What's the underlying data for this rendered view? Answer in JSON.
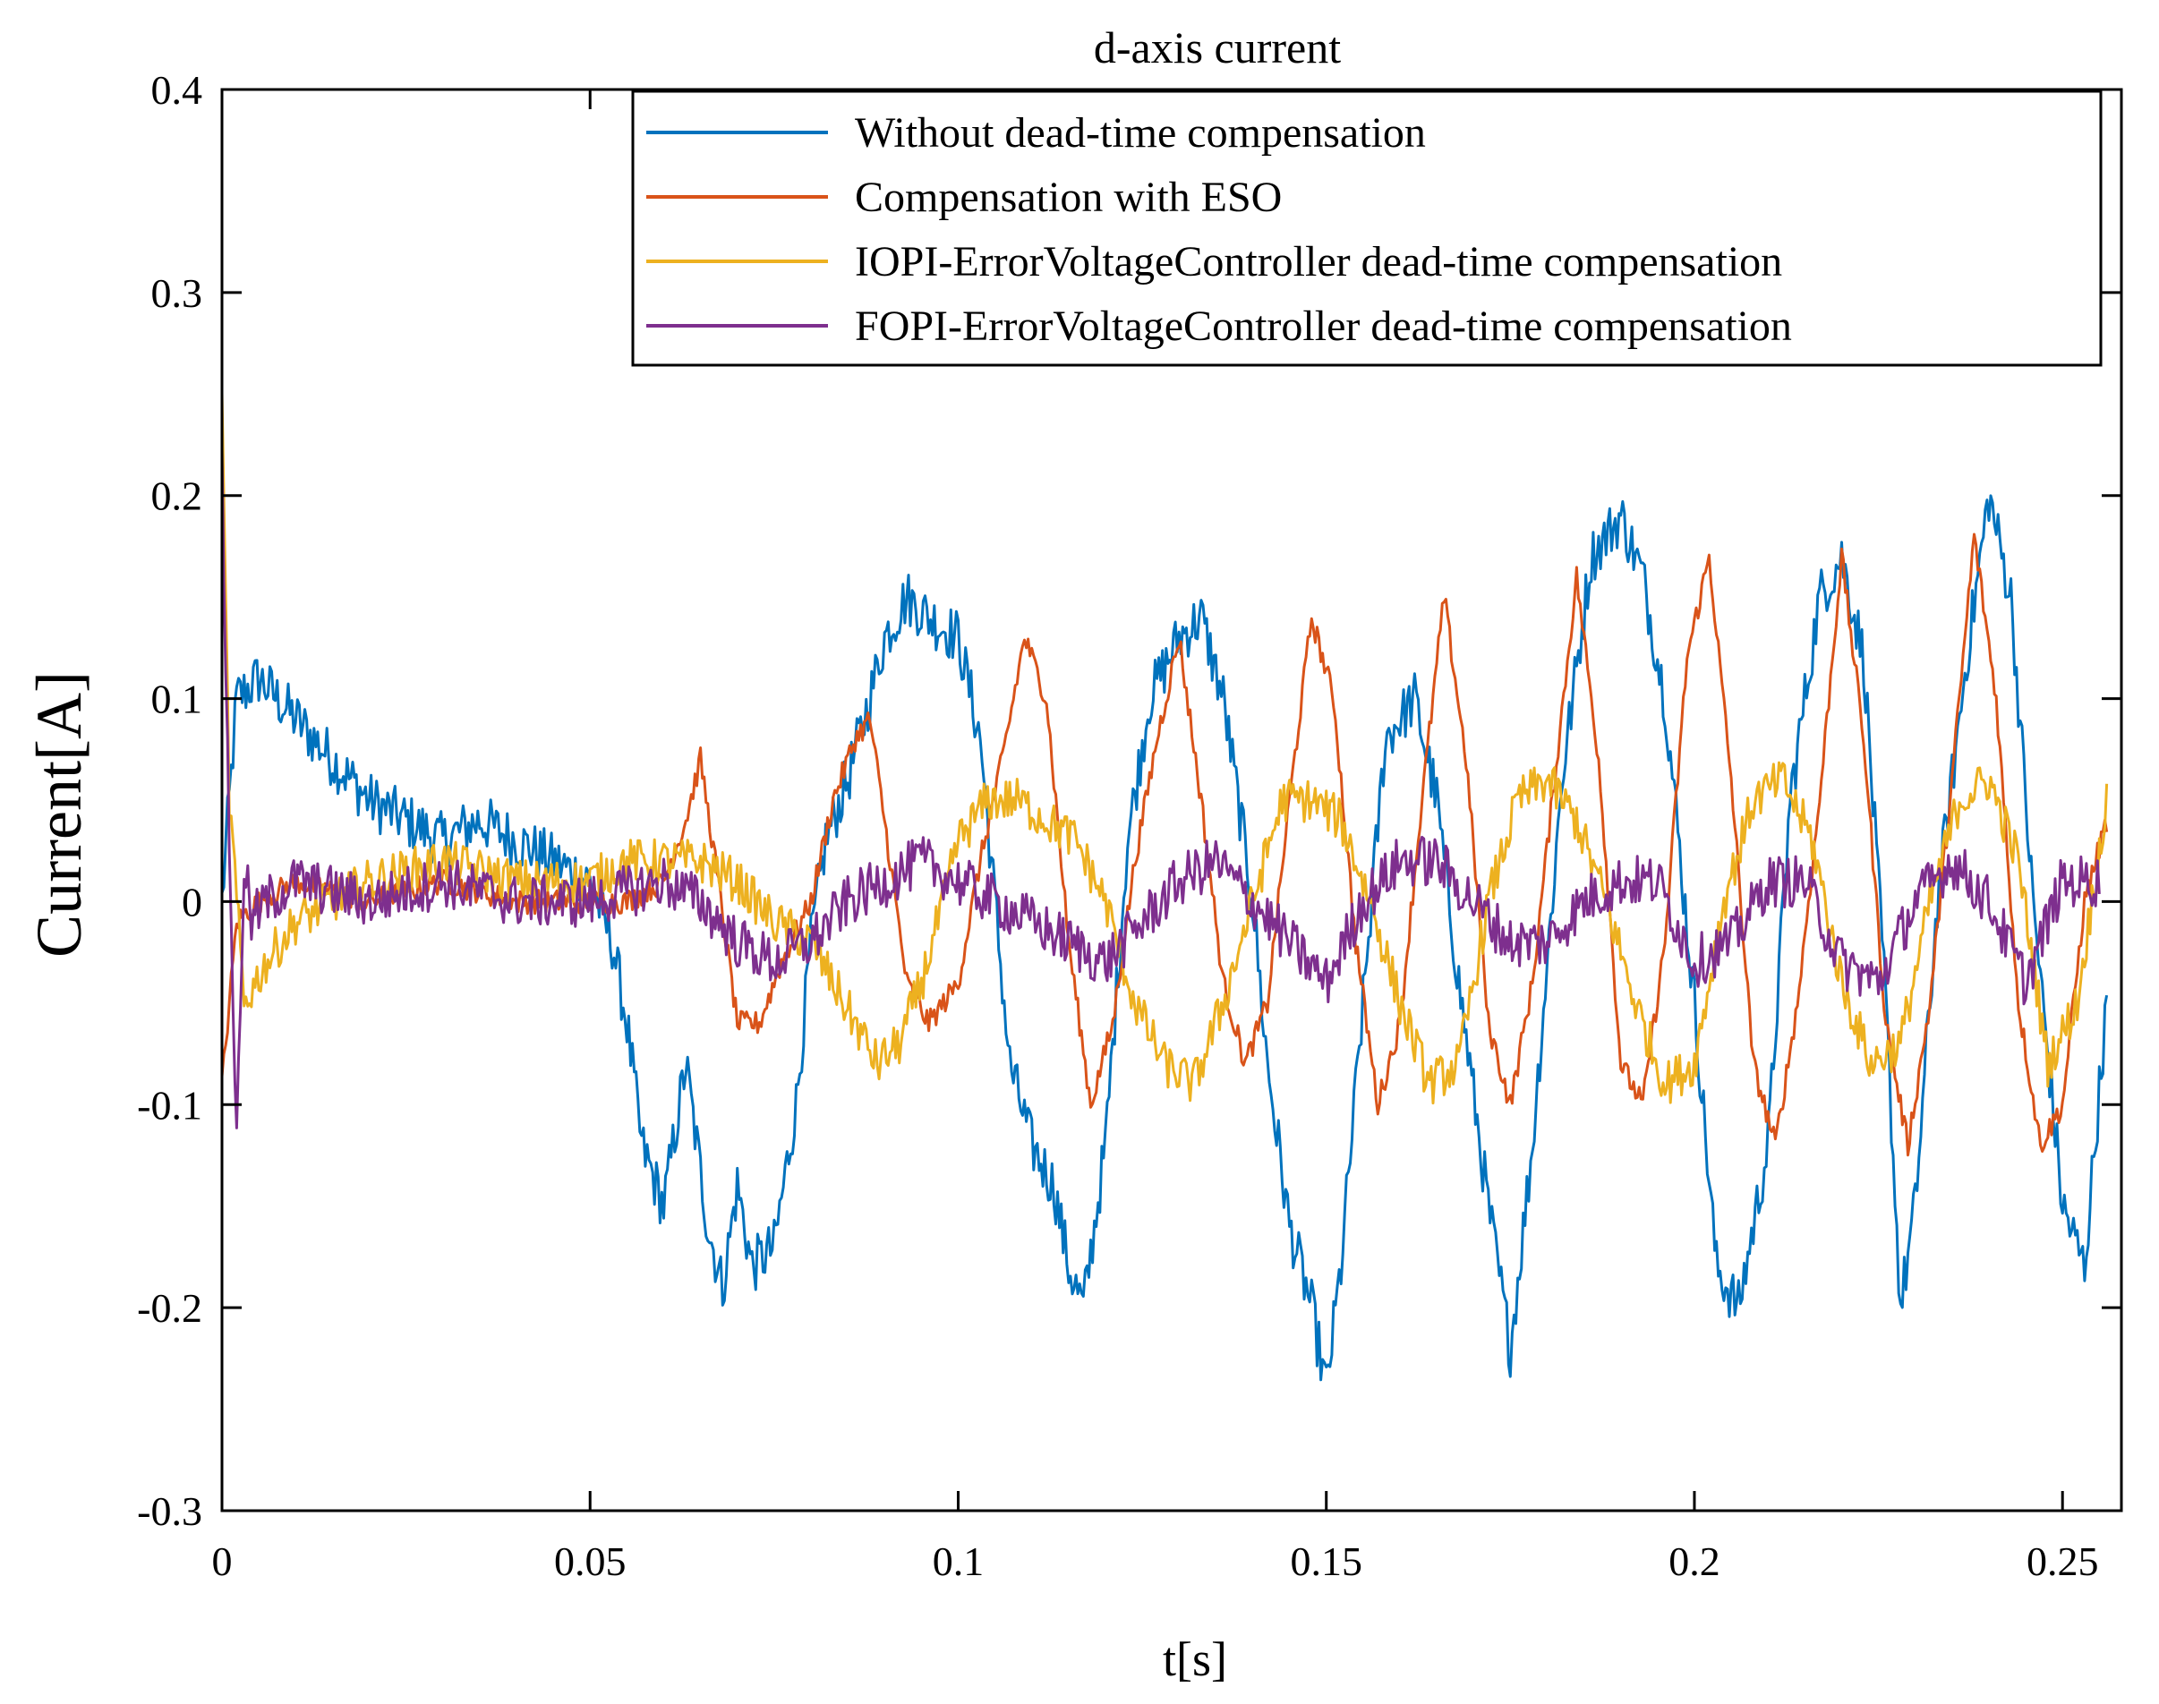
{
  "chart_data": {
    "type": "line",
    "title": "d-axis current",
    "xlabel": "t[s]",
    "ylabel": "Current[A]",
    "xlim": [
      0,
      0.258
    ],
    "ylim": [
      -0.3,
      0.4
    ],
    "xticks": [
      0,
      0.05,
      0.1,
      0.15,
      0.2,
      0.25
    ],
    "xtick_labels": [
      "0",
      "0.05",
      "0.1",
      "0.15",
      "0.2",
      "0.25"
    ],
    "yticks": [
      -0.3,
      -0.2,
      -0.1,
      0,
      0.1,
      0.2,
      0.3,
      0.4
    ],
    "ytick_labels": [
      "-0.3",
      "-0.2",
      "-0.1",
      "0",
      "0.1",
      "0.2",
      "0.3",
      "0.4"
    ],
    "grid": false,
    "legend_position": "top-right",
    "series": [
      {
        "name": "Without dead-time compensation",
        "color": "#0072BD",
        "x": [
          0,
          0.002,
          0.005,
          0.01,
          0.015,
          0.02,
          0.025,
          0.03,
          0.035,
          0.04,
          0.045,
          0.05,
          0.053,
          0.055,
          0.057,
          0.06,
          0.063,
          0.066,
          0.068,
          0.07,
          0.072,
          0.075,
          0.078,
          0.08,
          0.082,
          0.085,
          0.088,
          0.09,
          0.093,
          0.096,
          0.1,
          0.103,
          0.105,
          0.107,
          0.11,
          0.113,
          0.115,
          0.117,
          0.12,
          0.123,
          0.126,
          0.13,
          0.133,
          0.136,
          0.14,
          0.142,
          0.145,
          0.148,
          0.15,
          0.152,
          0.155,
          0.158,
          0.162,
          0.165,
          0.168,
          0.172,
          0.175,
          0.178,
          0.182,
          0.186,
          0.19,
          0.193,
          0.196,
          0.2,
          0.203,
          0.206,
          0.21,
          0.213,
          0.217,
          0.22,
          0.223,
          0.226,
          0.228,
          0.23,
          0.233,
          0.237,
          0.24,
          0.243,
          0.246,
          0.25,
          0.253,
          0.256
        ],
        "y": [
          0.0,
          0.1,
          0.11,
          0.09,
          0.07,
          0.05,
          0.04,
          0.03,
          0.04,
          0.03,
          0.02,
          0.01,
          -0.02,
          -0.06,
          -0.12,
          -0.15,
          -0.08,
          -0.16,
          -0.19,
          -0.14,
          -0.18,
          -0.17,
          -0.1,
          -0.02,
          0.03,
          0.06,
          0.1,
          0.13,
          0.15,
          0.14,
          0.13,
          0.08,
          0.0,
          -0.08,
          -0.12,
          -0.14,
          -0.18,
          -0.2,
          -0.12,
          0.03,
          0.1,
          0.13,
          0.14,
          0.1,
          0.0,
          -0.08,
          -0.16,
          -0.2,
          -0.24,
          -0.18,
          -0.05,
          0.08,
          0.1,
          0.05,
          -0.04,
          -0.15,
          -0.22,
          -0.12,
          0.06,
          0.17,
          0.19,
          0.16,
          0.1,
          -0.05,
          -0.18,
          -0.2,
          -0.12,
          0.05,
          0.15,
          0.17,
          0.12,
          -0.05,
          -0.2,
          -0.15,
          0.0,
          0.12,
          0.2,
          0.15,
          0.0,
          -0.15,
          -0.18,
          -0.05
        ]
      },
      {
        "name": "Compensation with ESO",
        "color": "#D95319",
        "x": [
          0,
          0.002,
          0.005,
          0.01,
          0.02,
          0.03,
          0.04,
          0.05,
          0.055,
          0.06,
          0.063,
          0.065,
          0.067,
          0.07,
          0.073,
          0.076,
          0.08,
          0.083,
          0.086,
          0.088,
          0.09,
          0.093,
          0.096,
          0.1,
          0.103,
          0.106,
          0.109,
          0.112,
          0.115,
          0.118,
          0.121,
          0.124,
          0.127,
          0.13,
          0.133,
          0.136,
          0.139,
          0.142,
          0.145,
          0.148,
          0.151,
          0.154,
          0.157,
          0.16,
          0.163,
          0.166,
          0.169,
          0.172,
          0.175,
          0.178,
          0.181,
          0.184,
          0.187,
          0.19,
          0.193,
          0.196,
          0.199,
          0.202,
          0.205,
          0.208,
          0.211,
          0.214,
          0.217,
          0.22,
          0.223,
          0.226,
          0.229,
          0.232,
          0.235,
          0.238,
          0.241,
          0.244,
          0.247,
          0.25,
          0.253,
          0.256
        ],
        "y": [
          -0.09,
          -0.01,
          0.0,
          0.01,
          0.0,
          0.01,
          0.0,
          0.0,
          0.0,
          0.01,
          0.04,
          0.07,
          0.02,
          -0.06,
          -0.06,
          -0.03,
          0.0,
          0.05,
          0.08,
          0.09,
          0.04,
          -0.04,
          -0.06,
          -0.04,
          0.02,
          0.07,
          0.13,
          0.1,
          -0.02,
          -0.1,
          -0.06,
          0.02,
          0.08,
          0.13,
          0.05,
          -0.04,
          -0.08,
          -0.05,
          0.05,
          0.14,
          0.1,
          -0.02,
          -0.1,
          -0.06,
          0.05,
          0.15,
          0.07,
          -0.06,
          -0.1,
          -0.04,
          0.06,
          0.16,
          0.07,
          -0.08,
          -0.1,
          -0.02,
          0.12,
          0.17,
          0.06,
          -0.08,
          -0.12,
          -0.05,
          0.05,
          0.17,
          0.08,
          -0.06,
          -0.12,
          -0.05,
          0.06,
          0.18,
          0.1,
          -0.05,
          -0.12,
          -0.1,
          0.0,
          0.04
        ]
      },
      {
        "name": "IOPI-ErrorVoltageController dead-time compensation",
        "color": "#EDB120",
        "x": [
          0,
          0.001,
          0.003,
          0.006,
          0.01,
          0.02,
          0.03,
          0.04,
          0.05,
          0.055,
          0.06,
          0.065,
          0.07,
          0.075,
          0.08,
          0.083,
          0.086,
          0.089,
          0.092,
          0.095,
          0.098,
          0.1,
          0.104,
          0.108,
          0.112,
          0.116,
          0.12,
          0.124,
          0.128,
          0.132,
          0.136,
          0.14,
          0.144,
          0.148,
          0.152,
          0.156,
          0.16,
          0.164,
          0.168,
          0.172,
          0.176,
          0.18,
          0.184,
          0.188,
          0.192,
          0.196,
          0.2,
          0.204,
          0.208,
          0.212,
          0.216,
          0.22,
          0.224,
          0.228,
          0.232,
          0.236,
          0.24,
          0.244,
          0.248,
          0.252,
          0.256
        ],
        "y": [
          0.24,
          0.05,
          -0.05,
          -0.03,
          -0.01,
          0.01,
          0.02,
          0.01,
          0.01,
          0.02,
          0.02,
          0.02,
          0.01,
          -0.01,
          -0.02,
          -0.04,
          -0.06,
          -0.08,
          -0.07,
          -0.04,
          0.0,
          0.03,
          0.05,
          0.05,
          0.04,
          0.03,
          0.0,
          -0.05,
          -0.08,
          -0.09,
          -0.05,
          0.0,
          0.05,
          0.05,
          0.04,
          0.0,
          -0.05,
          -0.09,
          -0.08,
          0.0,
          0.05,
          0.06,
          0.04,
          0.0,
          -0.05,
          -0.09,
          -0.08,
          0.0,
          0.05,
          0.06,
          0.03,
          -0.04,
          -0.08,
          -0.07,
          0.0,
          0.05,
          0.06,
          0.02,
          -0.08,
          -0.05,
          0.05
        ]
      },
      {
        "name": "FOPI-ErrorVoltageController dead-time compensation",
        "color": "#7E2F8E",
        "x": [
          0,
          0.001,
          0.002,
          0.003,
          0.004,
          0.006,
          0.01,
          0.02,
          0.03,
          0.04,
          0.05,
          0.06,
          0.065,
          0.07,
          0.075,
          0.08,
          0.085,
          0.09,
          0.095,
          0.1,
          0.105,
          0.11,
          0.115,
          0.12,
          0.125,
          0.13,
          0.135,
          0.14,
          0.145,
          0.15,
          0.155,
          0.16,
          0.165,
          0.17,
          0.175,
          0.18,
          0.185,
          0.19,
          0.195,
          0.2,
          0.205,
          0.21,
          0.215,
          0.22,
          0.225,
          0.23,
          0.235,
          0.24,
          0.245,
          0.25,
          0.255
        ],
        "y": [
          0.21,
          0.03,
          -0.12,
          0.02,
          -0.01,
          0.0,
          0.01,
          0.0,
          0.01,
          0.0,
          0.0,
          0.01,
          0.0,
          -0.02,
          -0.03,
          -0.02,
          0.0,
          0.01,
          0.02,
          0.01,
          0.0,
          -0.01,
          -0.02,
          -0.03,
          -0.01,
          0.01,
          0.02,
          0.0,
          -0.02,
          -0.04,
          0.0,
          0.02,
          0.02,
          0.0,
          -0.02,
          -0.02,
          0.0,
          0.01,
          0.01,
          -0.03,
          -0.02,
          0.01,
          0.01,
          -0.03,
          -0.04,
          0.0,
          0.02,
          0.0,
          -0.04,
          0.01,
          0.01
        ]
      }
    ]
  }
}
